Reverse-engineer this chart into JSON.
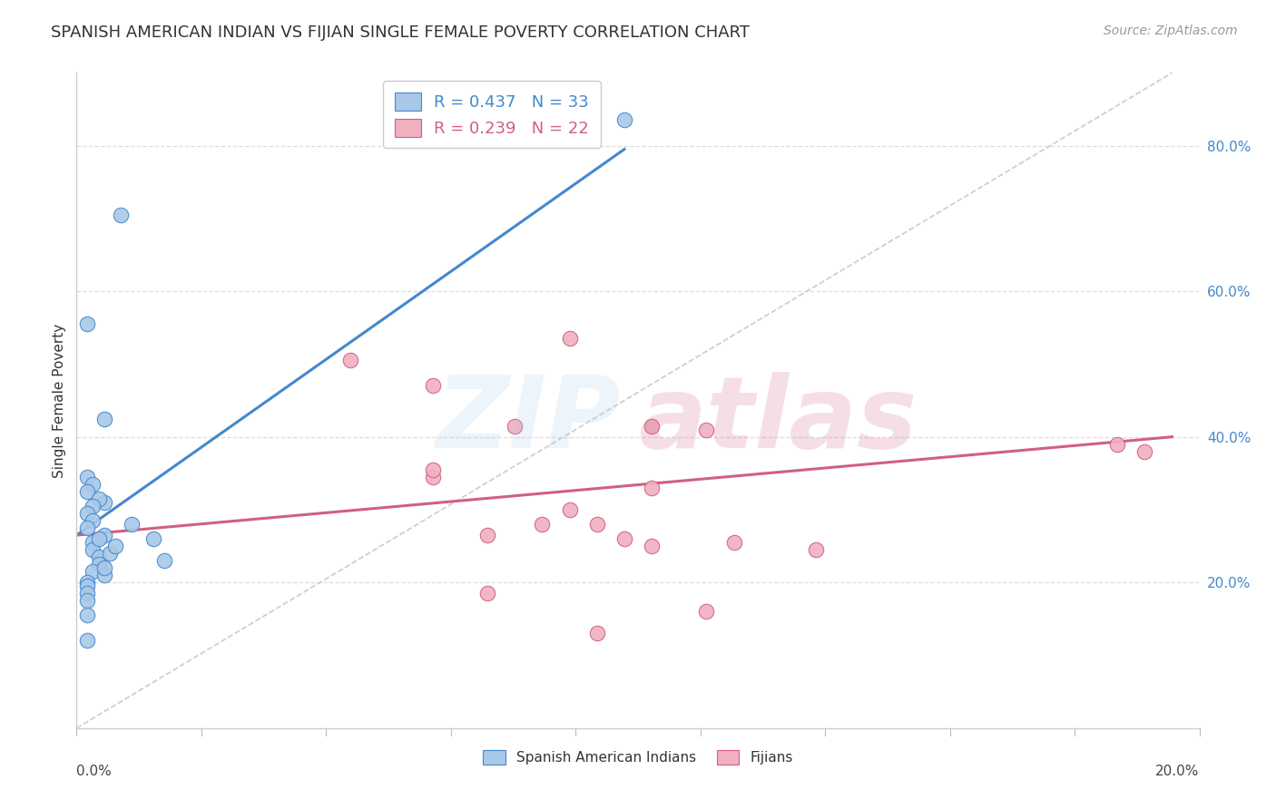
{
  "title": "SPANISH AMERICAN INDIAN VS FIJIAN SINGLE FEMALE POVERTY CORRELATION CHART",
  "source": "Source: ZipAtlas.com",
  "ylabel": "Single Female Poverty",
  "legend1_label": "R = 0.437   N = 33",
  "legend2_label": "R = 0.239   N = 22",
  "legend_color1": "#a8c8e8",
  "legend_color2": "#f0b0c0",
  "dot_color1": "#a8c8e8",
  "dot_color2": "#f0b0c0",
  "line_color1": "#4488cc",
  "line_color2": "#d06080",
  "diag_color": "#cccccc",
  "bg_color": "#ffffff",
  "grid_color": "#dddddd",
  "watermark_blue": "#a8c8e8",
  "watermark_pink": "#d06080",
  "legend_bottom_label1": "Spanish American Indians",
  "legend_bottom_label2": "Fijians",
  "spanish_x": [
    0.005,
    0.008,
    0.002,
    0.005,
    0.002,
    0.003,
    0.002,
    0.004,
    0.003,
    0.002,
    0.003,
    0.002,
    0.005,
    0.003,
    0.003,
    0.004,
    0.004,
    0.003,
    0.005,
    0.005,
    0.006,
    0.004,
    0.007,
    0.01,
    0.002,
    0.016,
    0.002,
    0.002,
    0.002,
    0.002,
    0.002,
    0.014,
    0.1
  ],
  "spanish_y": [
    0.31,
    0.705,
    0.555,
    0.425,
    0.345,
    0.335,
    0.325,
    0.315,
    0.305,
    0.295,
    0.285,
    0.275,
    0.265,
    0.255,
    0.245,
    0.235,
    0.225,
    0.215,
    0.21,
    0.22,
    0.24,
    0.26,
    0.25,
    0.28,
    0.2,
    0.23,
    0.195,
    0.185,
    0.175,
    0.155,
    0.12,
    0.26,
    0.835
  ],
  "fijian_x": [
    0.05,
    0.065,
    0.085,
    0.1,
    0.095,
    0.075,
    0.065,
    0.09,
    0.115,
    0.08,
    0.105,
    0.09,
    0.135,
    0.065,
    0.12,
    0.19,
    0.075,
    0.115,
    0.095,
    0.105,
    0.105,
    0.195
  ],
  "fijian_y": [
    0.505,
    0.345,
    0.28,
    0.26,
    0.28,
    0.265,
    0.47,
    0.535,
    0.41,
    0.415,
    0.33,
    0.3,
    0.245,
    0.355,
    0.255,
    0.39,
    0.185,
    0.16,
    0.13,
    0.25,
    0.415,
    0.38
  ],
  "blue_line_x": [
    0.0,
    0.1
  ],
  "blue_line_y": [
    0.265,
    0.795
  ],
  "pink_line_x": [
    0.0,
    0.2
  ],
  "pink_line_y": [
    0.265,
    0.4
  ],
  "diag_line_x": [
    0.0,
    0.2
  ],
  "diag_line_y": [
    0.0,
    0.9
  ],
  "xlim": [
    0.0,
    0.205
  ],
  "ylim": [
    0.0,
    0.9
  ],
  "yticks": [
    0.2,
    0.4,
    0.6,
    0.8
  ],
  "ytick_labels": [
    "20.0%",
    "40.0%",
    "60.0%",
    "80.0%"
  ],
  "xtick_left_label": "0.0%",
  "xtick_right_label": "20.0%",
  "title_fontsize": 13,
  "tick_fontsize": 11,
  "source_fontsize": 10
}
